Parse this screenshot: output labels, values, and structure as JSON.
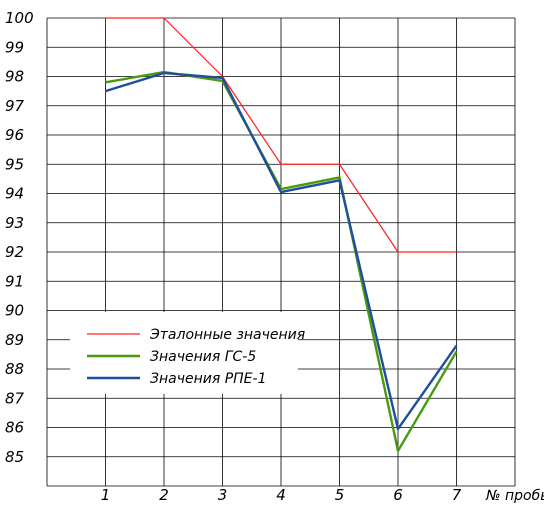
{
  "chart_data": {
    "type": "line",
    "title": "",
    "xlabel": "№ пробы",
    "ylabel": "",
    "x": [
      1,
      2,
      3,
      4,
      5,
      6,
      7
    ],
    "yticks": [
      85,
      86,
      87,
      88,
      89,
      90,
      91,
      92,
      93,
      94,
      95,
      96,
      97,
      98,
      99,
      100
    ],
    "ylim": [
      84,
      100
    ],
    "xlim": [
      0,
      8
    ],
    "grid": true,
    "legend_position": "center-left",
    "series": [
      {
        "name": "Эталонные значения",
        "color": "#ff2020",
        "values": [
          100,
          100,
          98,
          95,
          95,
          92,
          92
        ]
      },
      {
        "name": "Значения ГС-5",
        "color": "#4a9a10",
        "values": [
          97.8,
          98.15,
          97.85,
          94.15,
          94.55,
          85.2,
          88.6
        ]
      },
      {
        "name": "Значения РПЕ-1",
        "color": "#1f4f9a",
        "values": [
          97.5,
          98.12,
          97.95,
          94.05,
          94.45,
          85.95,
          88.8
        ]
      }
    ]
  }
}
